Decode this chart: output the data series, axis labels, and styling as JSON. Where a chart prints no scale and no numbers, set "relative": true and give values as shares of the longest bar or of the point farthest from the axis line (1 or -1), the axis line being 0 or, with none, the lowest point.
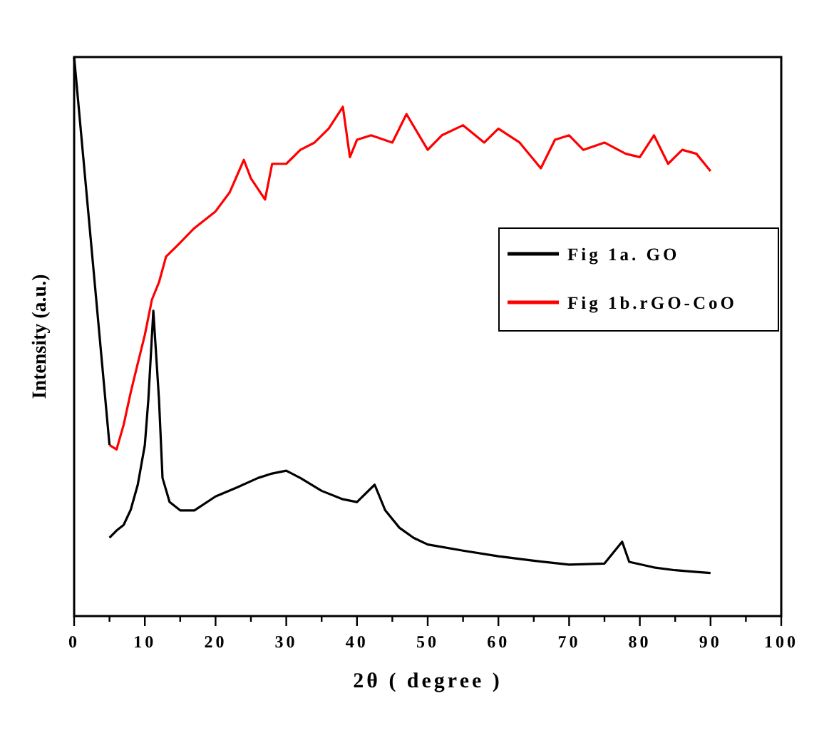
{
  "chart_data": {
    "type": "line",
    "xlabel": "2θ ( degree )",
    "ylabel": "Intensity (a.u.)",
    "relative": true,
    "xlim": [
      0,
      100
    ],
    "xticks": [
      0,
      {
        "value": 5,
        "label": null
      },
      10,
      {
        "value": 15,
        "label": null
      },
      20,
      {
        "value": 25,
        "label": null
      },
      30,
      {
        "value": 35,
        "label": null
      },
      40,
      {
        "value": 45,
        "label": null
      },
      50,
      {
        "value": 55,
        "label": null
      },
      60,
      {
        "value": 65,
        "label": null
      },
      70,
      {
        "value": 75,
        "label": null
      },
      80,
      {
        "value": 85,
        "label": null
      },
      90,
      {
        "value": 95,
        "label": null
      },
      100
    ],
    "legend": "right",
    "grid": false,
    "line_style": "solid",
    "series": [
      {
        "name": "Fig 1a. GO",
        "color": "#000000",
        "x": [
          5,
          6,
          7,
          8,
          9,
          10,
          10.5,
          11.2,
          12,
          12.5,
          13.5,
          15,
          17,
          20,
          23,
          26,
          28,
          30,
          32,
          35,
          38,
          40,
          42.5,
          44,
          46,
          48,
          50,
          55,
          60,
          65,
          70,
          75,
          77.5,
          78.5,
          82,
          85,
          88,
          90
        ],
        "values": [
          0.14,
          0.153,
          0.163,
          0.19,
          0.235,
          0.306,
          0.388,
          0.546,
          0.388,
          0.247,
          0.204,
          0.189,
          0.189,
          0.214,
          0.23,
          0.247,
          0.255,
          0.26,
          0.247,
          0.224,
          0.209,
          0.204,
          0.235,
          0.189,
          0.158,
          0.14,
          0.128,
          0.117,
          0.107,
          0.099,
          0.092,
          0.094,
          0.133,
          0.097,
          0.087,
          0.082,
          0.079,
          0.077
        ]
      },
      {
        "name": "Fig 1b.rGO-CoO",
        "color": "#ff0000",
        "x": [
          5,
          6,
          7,
          8,
          9,
          10,
          11,
          12,
          13,
          15,
          17,
          20,
          22,
          24,
          25,
          27,
          28,
          30,
          32,
          34,
          36,
          38,
          39,
          40,
          42,
          45,
          47,
          50,
          52,
          55,
          58,
          60,
          63,
          66,
          68,
          70,
          72,
          75,
          78,
          80,
          82,
          84,
          86,
          88,
          90
        ],
        "values": [
          0.306,
          0.298,
          0.342,
          0.4,
          0.452,
          0.503,
          0.566,
          0.597,
          0.643,
          0.668,
          0.694,
          0.724,
          0.758,
          0.816,
          0.783,
          0.745,
          0.809,
          0.809,
          0.834,
          0.847,
          0.872,
          0.911,
          0.821,
          0.852,
          0.86,
          0.847,
          0.898,
          0.834,
          0.86,
          0.878,
          0.847,
          0.872,
          0.847,
          0.801,
          0.852,
          0.86,
          0.834,
          0.847,
          0.827,
          0.821,
          0.86,
          0.809,
          0.834,
          0.827,
          0.796
        ]
      },
      {
        "color": "#000000",
        "x": [
          0,
          5
        ],
        "values": [
          1,
          0.306
        ]
      }
    ]
  }
}
